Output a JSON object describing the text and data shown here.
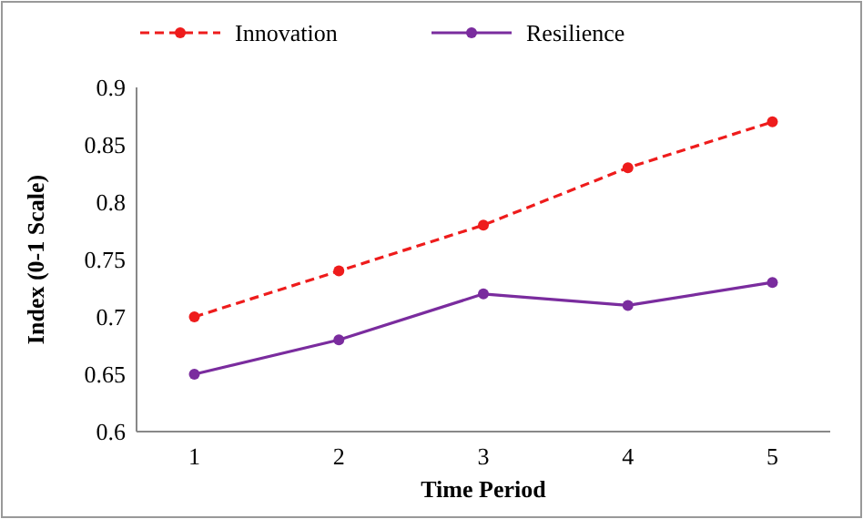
{
  "chart_data": {
    "type": "line",
    "xlabel": "Time Period",
    "ylabel": "Index (0-1 Scale)",
    "categories": [
      "1",
      "2",
      "3",
      "4",
      "5"
    ],
    "series": [
      {
        "name": "Innovation",
        "color": "#ee1c1c",
        "values": [
          0.7,
          0.74,
          0.78,
          0.83,
          0.87
        ],
        "line_style": "dashed"
      },
      {
        "name": "Resilience",
        "color": "#7a2c9e",
        "values": [
          0.65,
          0.68,
          0.72,
          0.71,
          0.73
        ],
        "line_style": "solid"
      }
    ],
    "ylim": [
      0.6,
      0.9
    ],
    "yticks": [
      0.6,
      0.65,
      0.7,
      0.75,
      0.8,
      0.85,
      0.9
    ],
    "grid": false,
    "legend": "top",
    "marker": "circle"
  }
}
